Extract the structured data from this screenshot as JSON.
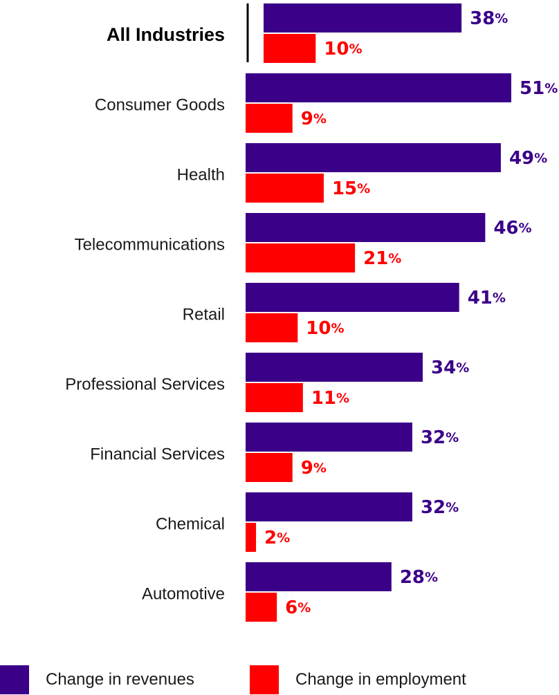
{
  "chart_data": {
    "type": "bar",
    "orientation": "horizontal",
    "categories": [
      "All Industries",
      "Consumer Goods",
      "Health",
      "Telecommunications",
      "Retail",
      "Professional Services",
      "Financial Services",
      "Chemical",
      "Automotive"
    ],
    "series": [
      {
        "name": "Change in revenues",
        "color": "#3a0088",
        "values": [
          38,
          51,
          49,
          46,
          41,
          34,
          32,
          32,
          28
        ]
      },
      {
        "name": "Change in employment",
        "color": "#ff0000",
        "values": [
          10,
          9,
          15,
          21,
          10,
          11,
          9,
          2,
          6
        ]
      }
    ],
    "value_suffix": "%",
    "highlight_category": "All Industries",
    "xlim": [
      0,
      51
    ],
    "legend_position": "bottom"
  },
  "legend": {
    "revenues_label": "Change in revenues",
    "employment_label": "Change in employment"
  }
}
